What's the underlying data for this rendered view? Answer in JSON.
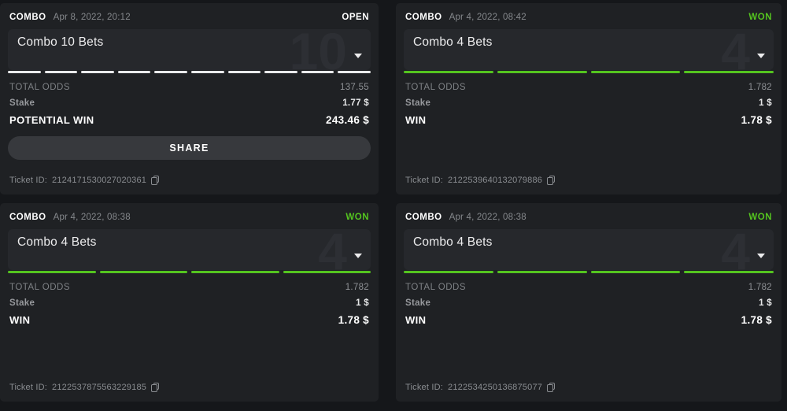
{
  "page": {
    "background": "#15171a",
    "accent_green": "#54c41f"
  },
  "cards": [
    {
      "type_label": "COMBO",
      "datetime": "Apr 8, 2022, 20:12",
      "status": {
        "label": "OPEN",
        "color": "#ffffff"
      },
      "title": "Combo 10 Bets",
      "bet_count_watermark": "10",
      "progress": {
        "segments": 10,
        "color": "#e9eaeb"
      },
      "total_odds": {
        "label": "TOTAL ODDS",
        "value": "137.55"
      },
      "stake": {
        "label": "Stake",
        "value": "1.77 $"
      },
      "win": {
        "label": "POTENTIAL WIN",
        "value": "243.46 $"
      },
      "share_label": "SHARE",
      "ticket": {
        "label": "Ticket ID:",
        "id": "2124171530027020361"
      }
    },
    {
      "type_label": "COMBO",
      "datetime": "Apr 4, 2022, 08:42",
      "status": {
        "label": "WON",
        "color": "#54c41f"
      },
      "title": "Combo 4 Bets",
      "bet_count_watermark": "4",
      "progress": {
        "segments": 4,
        "color": "#54c41f"
      },
      "total_odds": {
        "label": "TOTAL ODDS",
        "value": "1.782"
      },
      "stake": {
        "label": "Stake",
        "value": "1 $"
      },
      "win": {
        "label": "WIN",
        "value": "1.78 $"
      },
      "share_label": null,
      "ticket": {
        "label": "Ticket ID:",
        "id": "2122539640132079886"
      }
    },
    {
      "type_label": "COMBO",
      "datetime": "Apr 4, 2022, 08:38",
      "status": {
        "label": "WON",
        "color": "#54c41f"
      },
      "title": "Combo 4 Bets",
      "bet_count_watermark": "4",
      "progress": {
        "segments": 4,
        "color": "#54c41f"
      },
      "total_odds": {
        "label": "TOTAL ODDS",
        "value": "1.782"
      },
      "stake": {
        "label": "Stake",
        "value": "1 $"
      },
      "win": {
        "label": "WIN",
        "value": "1.78 $"
      },
      "share_label": null,
      "ticket": {
        "label": "Ticket ID:",
        "id": "2122537875563229185"
      }
    },
    {
      "type_label": "COMBO",
      "datetime": "Apr 4, 2022, 08:38",
      "status": {
        "label": "WON",
        "color": "#54c41f"
      },
      "title": "Combo 4 Bets",
      "bet_count_watermark": "4",
      "progress": {
        "segments": 4,
        "color": "#54c41f"
      },
      "total_odds": {
        "label": "TOTAL ODDS",
        "value": "1.782"
      },
      "stake": {
        "label": "Stake",
        "value": "1 $"
      },
      "win": {
        "label": "WIN",
        "value": "1.78 $"
      },
      "share_label": null,
      "ticket": {
        "label": "Ticket ID:",
        "id": "2122534250136875077"
      }
    }
  ]
}
